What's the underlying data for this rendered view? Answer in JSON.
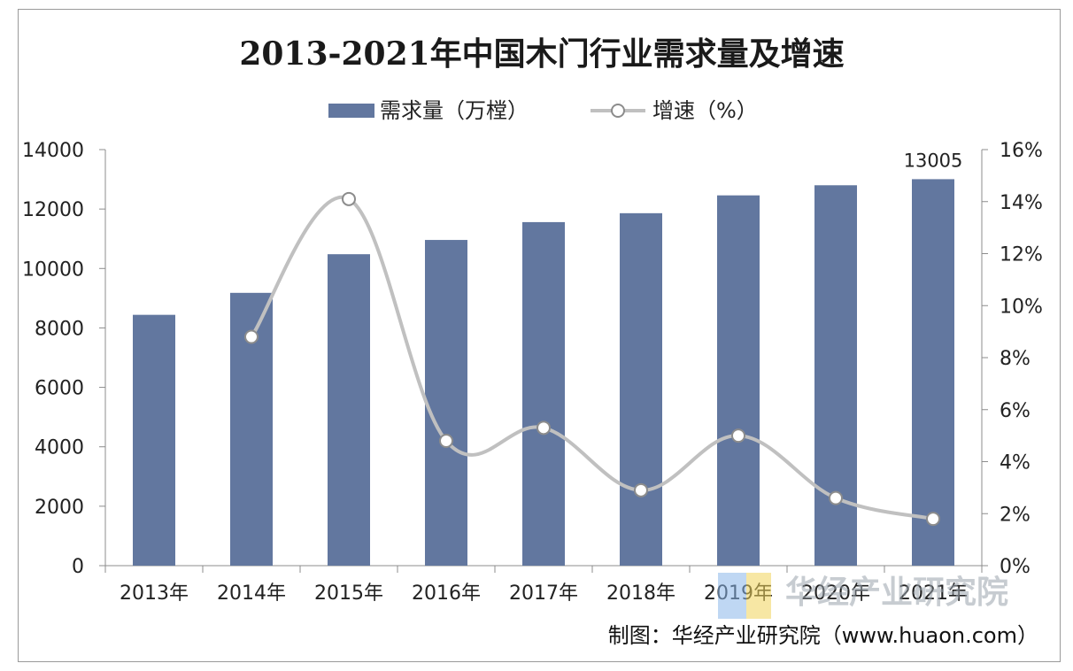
{
  "chart_data": {
    "type": "bar",
    "title": "2013-2021年中国木门行业需求量及增速",
    "categories": [
      "2013年",
      "2014年",
      "2015年",
      "2016年",
      "2017年",
      "2018年",
      "2019年",
      "2020年",
      "2021年"
    ],
    "series": [
      {
        "name": "需求量（万樘）",
        "type": "bar",
        "axis": "left",
        "values": [
          8440,
          9180,
          10480,
          10960,
          11560,
          11860,
          12460,
          12800,
          13005
        ]
      },
      {
        "name": "增速（%）",
        "type": "line",
        "axis": "right",
        "values": [
          null,
          8.8,
          14.1,
          4.8,
          5.3,
          2.9,
          5.0,
          2.6,
          1.8
        ]
      }
    ],
    "y_left": {
      "min": 0,
      "max": 14000,
      "ticks": [
        "0",
        "2000",
        "4000",
        "6000",
        "8000",
        "10000",
        "12000",
        "14000"
      ]
    },
    "y_right": {
      "min": 0,
      "max": 16,
      "ticks": [
        "0%",
        "2%",
        "4%",
        "6%",
        "8%",
        "10%",
        "12%",
        "14%",
        "16%"
      ]
    },
    "data_labels": [
      {
        "index": 8,
        "text": "13005"
      }
    ],
    "colors": {
      "bar": "#62779f",
      "line": "#c0c0c0",
      "marker_fill": "#ffffff",
      "marker_stroke": "#8c8c8c"
    },
    "legend_position": "top-center"
  },
  "watermark": "华经产业研究院",
  "credit": "制图：华经产业研究院（www.huaon.com）"
}
